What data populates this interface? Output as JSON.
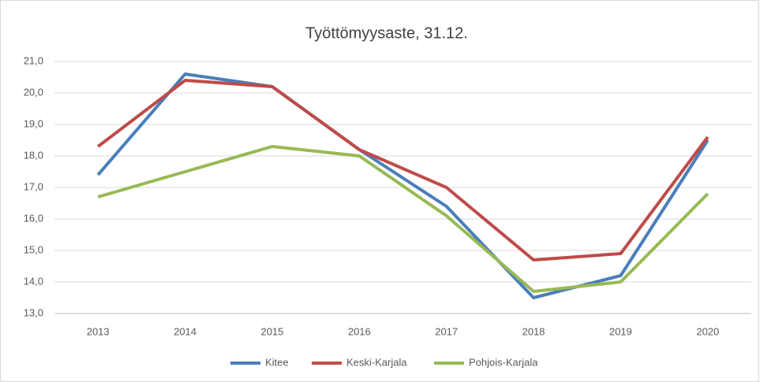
{
  "chart_data": {
    "type": "line",
    "title": "Työttömyysaste, 31.12.",
    "categories": [
      "2013",
      "2014",
      "2015",
      "2016",
      "2017",
      "2018",
      "2019",
      "2020"
    ],
    "series": [
      {
        "name": "Kitee",
        "color": "#4a7ebb",
        "values": [
          17.4,
          20.6,
          20.2,
          18.2,
          16.4,
          13.5,
          14.2,
          18.5
        ]
      },
      {
        "name": "Keski-Karjala",
        "color": "#be4b48",
        "values": [
          18.3,
          20.4,
          20.2,
          18.2,
          17.0,
          14.7,
          14.9,
          18.6
        ]
      },
      {
        "name": "Pohjois-Karjala",
        "color": "#98b954",
        "values": [
          16.7,
          17.5,
          18.3,
          18.0,
          16.1,
          13.7,
          14.0,
          16.8
        ]
      }
    ],
    "ylim": [
      13,
      21
    ],
    "yticks": [
      {
        "value": 13,
        "label": "13,0"
      },
      {
        "value": 14,
        "label": "14,0"
      },
      {
        "value": 15,
        "label": "15,0"
      },
      {
        "value": 16,
        "label": "16,0"
      },
      {
        "value": 17,
        "label": "17,0"
      },
      {
        "value": 18,
        "label": "18,0"
      },
      {
        "value": 19,
        "label": "19,0"
      },
      {
        "value": 20,
        "label": "20,0"
      },
      {
        "value": 21,
        "label": "21,0"
      }
    ],
    "grid": true,
    "legend": "bottom"
  }
}
